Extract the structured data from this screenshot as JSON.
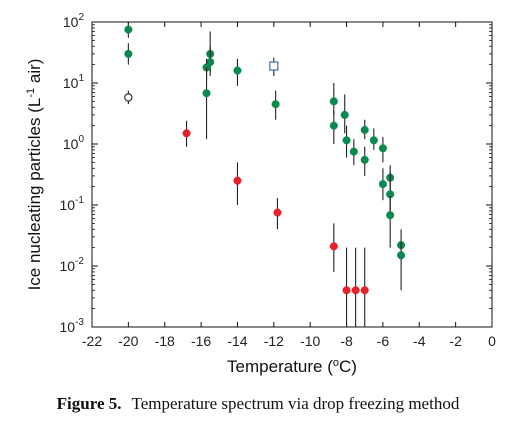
{
  "chart_data": {
    "type": "scatter",
    "xlabel": "Temperature (",
    "xlabel_sup": "o",
    "xlabel_end": "C)",
    "ylabel": "Ice nucleating particles (L",
    "ylabel_sup": "-1",
    "ylabel_end": " air)",
    "xlim": [
      -22,
      0
    ],
    "ylim": [
      0.001,
      100
    ],
    "yscale": "log",
    "x_ticks": [
      -22,
      -20,
      -18,
      -16,
      -14,
      -12,
      -10,
      -8,
      -6,
      -4,
      -2,
      0
    ],
    "y_ticks": [
      {
        "value": 0.001,
        "base": "10",
        "exp": "-3"
      },
      {
        "value": 0.01,
        "base": "10",
        "exp": "-2"
      },
      {
        "value": 0.1,
        "base": "10",
        "exp": "-1"
      },
      {
        "value": 1,
        "base": "10",
        "exp": "0"
      },
      {
        "value": 10,
        "base": "10",
        "exp": "1"
      },
      {
        "value": 100,
        "base": "10",
        "exp": "2"
      }
    ],
    "grid": false,
    "series": [
      {
        "marker": "circle-filled",
        "color": "#0a8a4e",
        "points": [
          {
            "x": -20.0,
            "y": 75,
            "lo": 55,
            "hi": 100
          },
          {
            "x": -20.0,
            "y": 30,
            "lo": 20,
            "hi": 45
          },
          {
            "x": -15.5,
            "y": 30,
            "lo": 15,
            "hi": 70
          },
          {
            "x": -15.5,
            "y": 22,
            "lo": 13,
            "hi": 40
          },
          {
            "x": -15.7,
            "y": 18,
            "lo": 12,
            "hi": 25
          },
          {
            "x": -15.7,
            "y": 6.8,
            "lo": 1.2,
            "hi": 18
          },
          {
            "x": -14.0,
            "y": 16,
            "lo": 9,
            "hi": 25
          },
          {
            "x": -11.9,
            "y": 4.5,
            "lo": 2.5,
            "hi": 7.5
          },
          {
            "x": -8.7,
            "y": 5.0,
            "lo": 3.0,
            "hi": 10
          },
          {
            "x": -8.7,
            "y": 2.0,
            "lo": 1.0,
            "hi": 3.5
          },
          {
            "x": -8.1,
            "y": 3.0,
            "lo": 1.5,
            "hi": 6.5
          },
          {
            "x": -8.0,
            "y": 1.15,
            "lo": 0.6,
            "hi": 2.0
          },
          {
            "x": -7.6,
            "y": 0.75,
            "lo": 0.45,
            "hi": 1.2
          },
          {
            "x": -7.0,
            "y": 1.7,
            "lo": 1.2,
            "hi": 2.5
          },
          {
            "x": -7.0,
            "y": 0.55,
            "lo": 0.3,
            "hi": 0.9
          },
          {
            "x": -6.5,
            "y": 1.15,
            "lo": 0.8,
            "hi": 1.8
          },
          {
            "x": -6.0,
            "y": 0.85,
            "lo": 0.5,
            "hi": 1.3
          },
          {
            "x": -6.0,
            "y": 0.22,
            "lo": 0.12,
            "hi": 0.4
          },
          {
            "x": -5.6,
            "y": 0.28,
            "lo": 0.15,
            "hi": 0.45
          },
          {
            "x": -5.6,
            "y": 0.15,
            "lo": 0.07,
            "hi": 0.35
          },
          {
            "x": -5.6,
            "y": 0.068,
            "lo": 0.02,
            "hi": 0.14
          },
          {
            "x": -5.0,
            "y": 0.022,
            "lo": 0.012,
            "hi": 0.04
          },
          {
            "x": -5.0,
            "y": 0.015,
            "lo": 0.004,
            "hi": 0.025
          }
        ]
      },
      {
        "marker": "circle-filled",
        "color": "#e8202a",
        "points": [
          {
            "x": -16.8,
            "y": 1.5,
            "lo": 0.9,
            "hi": 2.4
          },
          {
            "x": -14.0,
            "y": 0.25,
            "lo": 0.1,
            "hi": 0.5
          },
          {
            "x": -11.8,
            "y": 0.075,
            "lo": 0.04,
            "hi": 0.13
          },
          {
            "x": -8.7,
            "y": 0.021,
            "lo": 0.008,
            "hi": 0.05
          },
          {
            "x": -8.0,
            "y": 0.004,
            "lo": 0.001,
            "hi": 0.02
          },
          {
            "x": -7.5,
            "y": 0.004,
            "lo": 0.001,
            "hi": 0.02
          },
          {
            "x": -7.0,
            "y": 0.004,
            "lo": 0.001,
            "hi": 0.02
          }
        ]
      },
      {
        "marker": "circle-open",
        "color": "#222222",
        "points": [
          {
            "x": -20.0,
            "y": 5.8,
            "lo": 4.5,
            "hi": 7.5
          }
        ]
      },
      {
        "marker": "square-open",
        "color": "#3a6fb0",
        "points": [
          {
            "x": -12.0,
            "y": 19,
            "lo": 13,
            "hi": 26
          }
        ]
      }
    ]
  },
  "caption": {
    "figure_label": "Figure 5.",
    "text": "Temperature spectrum via drop freezing method"
  }
}
